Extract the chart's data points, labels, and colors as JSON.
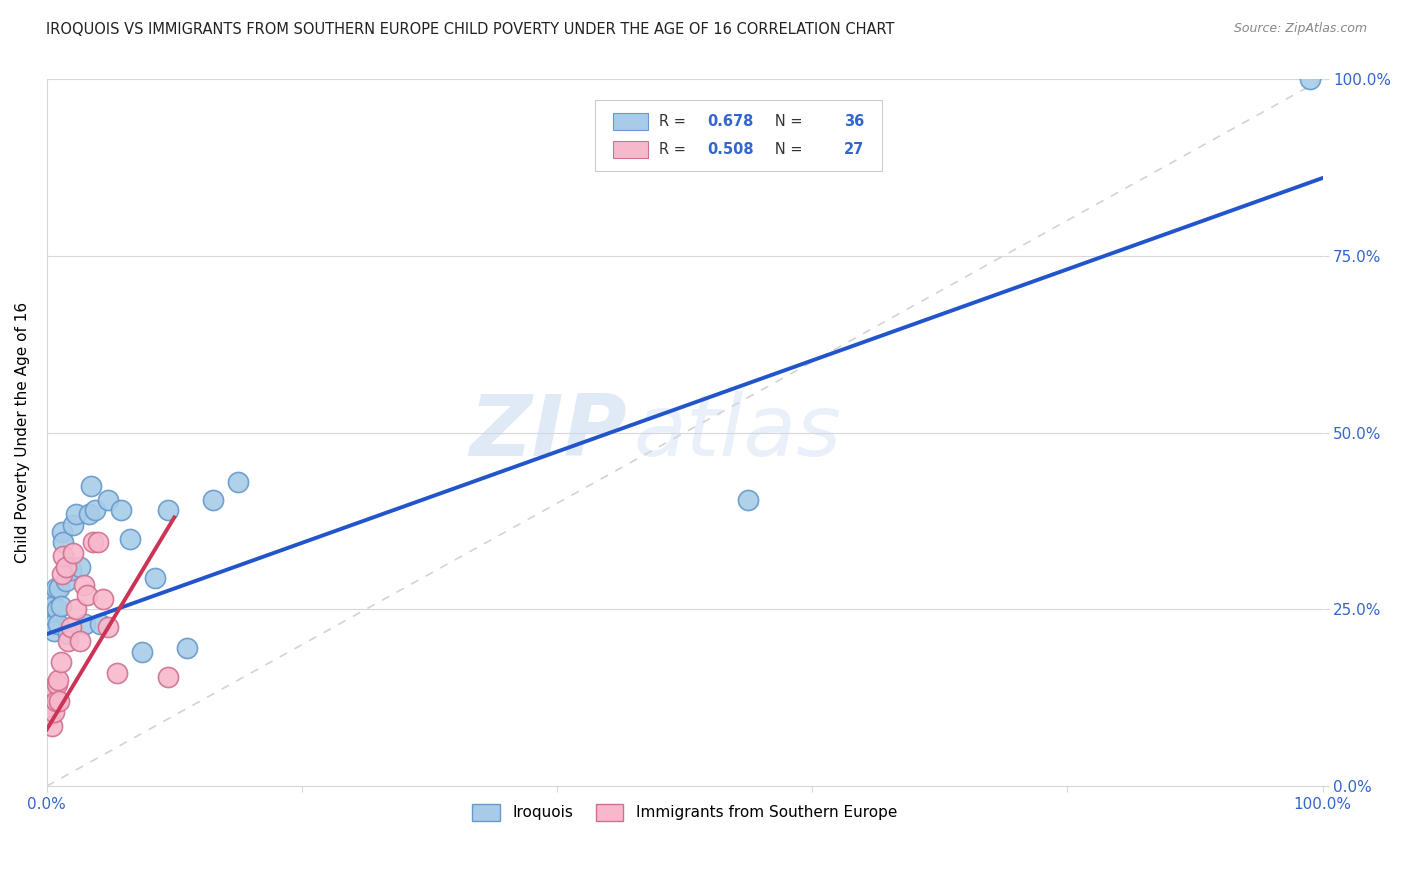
{
  "title": "IROQUOIS VS IMMIGRANTS FROM SOUTHERN EUROPE CHILD POVERTY UNDER THE AGE OF 16 CORRELATION CHART",
  "source": "Source: ZipAtlas.com",
  "ylabel": "Child Poverty Under the Age of 16",
  "iroquois_fill": "#a8cce8",
  "iroquois_edge": "#6699cc",
  "immigrants_fill": "#f8b8cc",
  "immigrants_edge": "#d07090",
  "trendline_iroquois": "#2255cc",
  "trendline_immigrants": "#cc3355",
  "diagonal_color": "#cccccc",
  "R_iroquois": "0.678",
  "N_iroquois": "36",
  "R_immigrants": "0.508",
  "N_immigrants": "27",
  "watermark_zip": "ZIP",
  "watermark_atlas": "atlas",
  "background_color": "#ffffff",
  "grid_color": "#d8d8d8",
  "axis_value_color": "#3366cc",
  "title_color": "#222222",
  "source_color": "#888888",
  "legend_label_1": "Iroquois",
  "legend_label_2": "Immigrants from Southern Europe",
  "ytick_labels": [
    "0.0%",
    "25.0%",
    "50.0%",
    "75.0%",
    "100.0%"
  ],
  "ytick_values": [
    0.0,
    0.25,
    0.5,
    0.75,
    1.0
  ],
  "xtick_labels": [
    "0.0%",
    "",
    "",
    "",
    "",
    "100.0%"
  ],
  "xtick_values": [
    0.0,
    0.2,
    0.4,
    0.6,
    0.8,
    1.0
  ],
  "iroquois_x": [
    0.001,
    0.002,
    0.003,
    0.004,
    0.005,
    0.006,
    0.006,
    0.007,
    0.008,
    0.009,
    0.01,
    0.011,
    0.012,
    0.013,
    0.015,
    0.017,
    0.019,
    0.021,
    0.023,
    0.026,
    0.03,
    0.033,
    0.035,
    0.038,
    0.042,
    0.048,
    0.058,
    0.065,
    0.075,
    0.085,
    0.095,
    0.11,
    0.13,
    0.15,
    0.55,
    0.99
  ],
  "iroquois_y": [
    0.23,
    0.24,
    0.27,
    0.265,
    0.255,
    0.23,
    0.22,
    0.28,
    0.25,
    0.23,
    0.28,
    0.255,
    0.36,
    0.345,
    0.29,
    0.215,
    0.305,
    0.37,
    0.385,
    0.31,
    0.23,
    0.385,
    0.425,
    0.39,
    0.23,
    0.405,
    0.39,
    0.35,
    0.19,
    0.295,
    0.39,
    0.195,
    0.405,
    0.43,
    0.405,
    1.0
  ],
  "immigrants_x": [
    0.001,
    0.002,
    0.003,
    0.004,
    0.005,
    0.006,
    0.007,
    0.008,
    0.009,
    0.01,
    0.011,
    0.012,
    0.013,
    0.015,
    0.017,
    0.019,
    0.021,
    0.023,
    0.026,
    0.029,
    0.032,
    0.036,
    0.04,
    0.044,
    0.048,
    0.055,
    0.095
  ],
  "immigrants_y": [
    0.1,
    0.12,
    0.1,
    0.085,
    0.14,
    0.105,
    0.12,
    0.145,
    0.15,
    0.12,
    0.175,
    0.3,
    0.325,
    0.31,
    0.205,
    0.225,
    0.33,
    0.25,
    0.205,
    0.285,
    0.27,
    0.345,
    0.345,
    0.265,
    0.225,
    0.16,
    0.155
  ],
  "trendline_iq_x0": 0.0,
  "trendline_iq_y0": 0.215,
  "trendline_iq_x1": 1.0,
  "trendline_iq_y1": 0.86,
  "trendline_im_x0": 0.0,
  "trendline_im_y0": 0.08,
  "trendline_im_x1": 0.1,
  "trendline_im_y1": 0.38
}
